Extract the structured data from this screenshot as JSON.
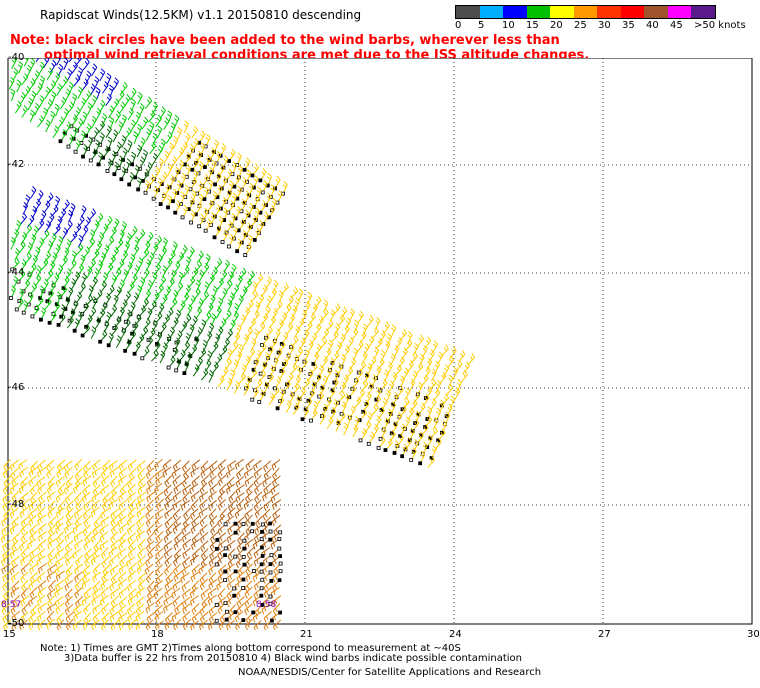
{
  "title": "Rapidscat Winds(12.5KM) v1.1 20150810 descending",
  "note_line1": "Note: black circles have been added to the wind barbs, wherever less than",
  "note_line2": "optimal wind retrieval conditions are met due to the ISS altitude changes.",
  "legend": {
    "labels": [
      "0",
      "5",
      "10",
      "15",
      "20",
      "25",
      "30",
      "35",
      "40",
      "45",
      ">50 knots"
    ],
    "colors": [
      "#4d4d4d",
      "#00b0ff",
      "#0000ff",
      "#00c000",
      "#ffff00",
      "#ff9900",
      "#ff3300",
      "#ff0000",
      "#a0522d",
      "#ff00ff",
      "#5a1a8a"
    ]
  },
  "axes": {
    "lat_labels": [
      "-40",
      "-42",
      "-44",
      "-46",
      "-48",
      "-50"
    ],
    "lon_labels": [
      "15",
      "18",
      "21",
      "24",
      "27",
      "30"
    ]
  },
  "time_labels": [
    "8:57",
    "8:58"
  ],
  "footer": {
    "line1": "Note: 1) Times are GMT 2)Times along bottom correspond to measurement at ~40S",
    "line2": "3)Data buffer is 22 hrs from 20150810 4) Black wind barbs indicate possible contamination",
    "line3": "NOAA/NESDIS/Center for Satellite Applications and Research"
  },
  "colors": {
    "barb_blue": "#0000cc",
    "barb_green": "#00cc00",
    "barb_darkgreen": "#006600",
    "barb_yellow": "#ffcc00",
    "barb_orange": "#e08010",
    "barb_darkorange": "#b86010",
    "note_red": "#ff0000",
    "time_purple": "#8800aa"
  }
}
